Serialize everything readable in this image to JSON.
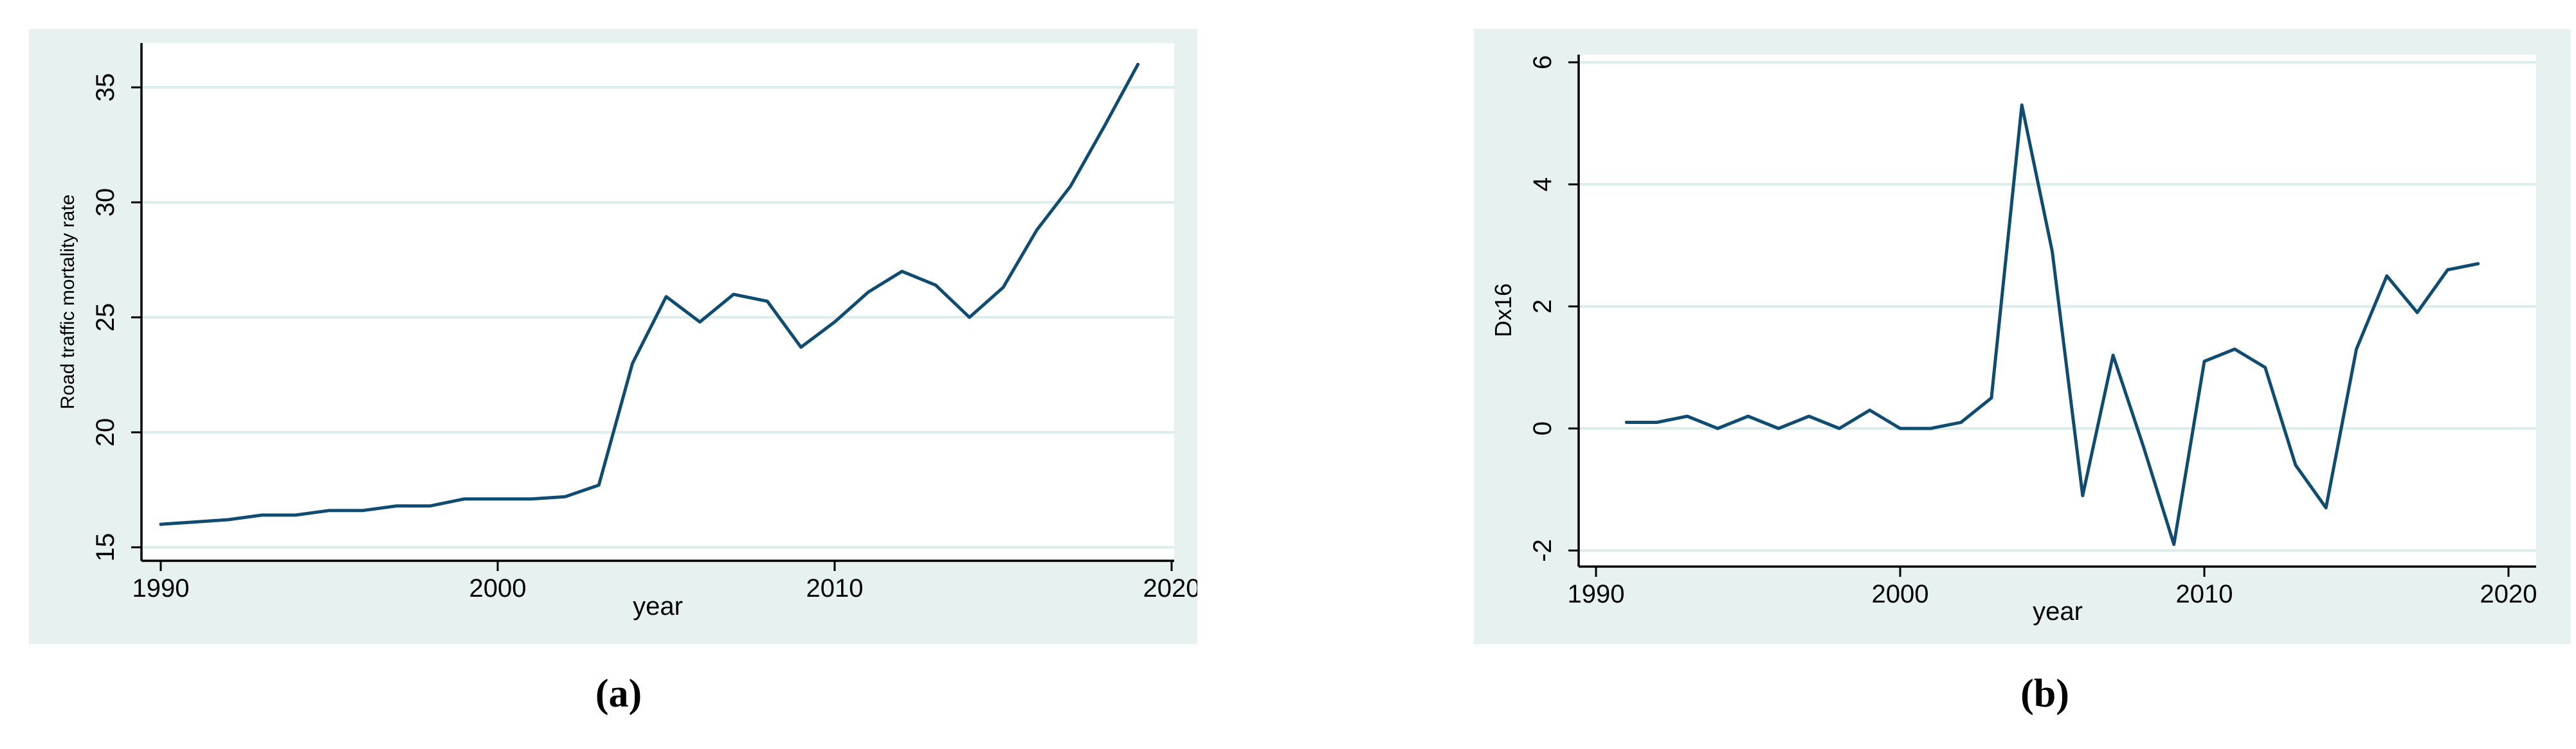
{
  "colors": {
    "line": "#0e4c72",
    "panel_bg": "#e7f1f0",
    "plot_bg": "#ffffff",
    "gridline": "#dcedec",
    "axis": "#000000",
    "text": "#000000"
  },
  "chart_data": [
    {
      "id": "a",
      "type": "line",
      "caption": "(a)",
      "title": "",
      "xlabel": "year",
      "ylabel": "Road traffic mortality rate",
      "legend_position": "none",
      "grid": true,
      "xlim": [
        1989.4,
        2021.0
      ],
      "ylim": [
        14.7,
        37.0
      ],
      "xticks": [
        1990,
        2000,
        2010,
        2020
      ],
      "yticks": [
        15,
        20,
        25,
        30,
        35
      ],
      "x": [
        1990,
        1991,
        1992,
        1993,
        1994,
        1995,
        1996,
        1997,
        1998,
        1999,
        2000,
        2001,
        2002,
        2003,
        2004,
        2005,
        2006,
        2007,
        2008,
        2009,
        2010,
        2011,
        2012,
        2013,
        2014,
        2015,
        2016,
        2017,
        2018,
        2019
      ],
      "values": [
        16.0,
        16.1,
        16.2,
        16.4,
        16.4,
        16.6,
        16.6,
        16.8,
        16.8,
        17.1,
        17.1,
        17.1,
        17.2,
        17.7,
        23.0,
        25.9,
        24.8,
        26.0,
        25.7,
        23.7,
        24.8,
        26.1,
        27.0,
        26.4,
        25.0,
        26.3,
        28.8,
        30.7,
        33.3,
        36.0
      ]
    },
    {
      "id": "b",
      "type": "line",
      "caption": "(b)",
      "title": "",
      "xlabel": "year",
      "ylabel": "Dx16",
      "legend_position": "none",
      "grid": true,
      "xlim": [
        1989.4,
        2021.0
      ],
      "ylim": [
        -2.3,
        6.2
      ],
      "xticks": [
        1990,
        2000,
        2010,
        2020
      ],
      "yticks": [
        -2,
        0,
        2,
        4,
        6
      ],
      "x": [
        1991,
        1992,
        1993,
        1994,
        1995,
        1996,
        1997,
        1998,
        1999,
        2000,
        2001,
        2002,
        2003,
        2004,
        2005,
        2006,
        2007,
        2008,
        2009,
        2010,
        2011,
        2012,
        2013,
        2014,
        2015,
        2016,
        2017,
        2018,
        2019
      ],
      "values": [
        0.1,
        0.1,
        0.2,
        0.0,
        0.2,
        0.0,
        0.2,
        0.0,
        0.3,
        0.0,
        0.0,
        0.1,
        0.5,
        5.3,
        2.9,
        -1.1,
        1.2,
        -0.3,
        -1.9,
        1.1,
        1.3,
        1.0,
        -0.6,
        -1.3,
        1.3,
        2.5,
        1.9,
        2.6,
        2.7
      ]
    }
  ]
}
